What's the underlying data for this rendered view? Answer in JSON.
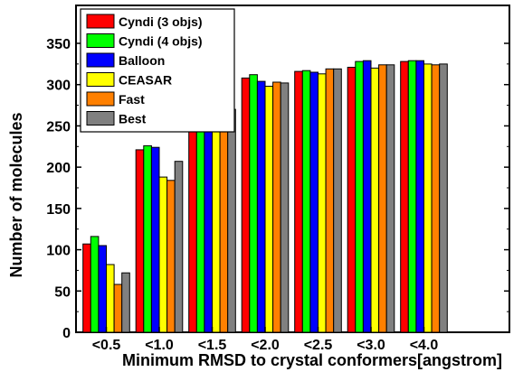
{
  "chart_data": {
    "type": "bar",
    "categories": [
      "<0.5",
      "<1.0",
      "<1.5",
      "<2.0",
      "<2.5",
      "<3.0",
      "<4.0"
    ],
    "series": [
      {
        "name": "Cyndi (3 objs)",
        "color": "#ff0000",
        "values": [
          107,
          221,
          284,
          308,
          316,
          321,
          328
        ]
      },
      {
        "name": "Cyndi (4 objs)",
        "color": "#00ff00",
        "values": [
          116,
          226,
          282,
          312,
          317,
          328,
          329
        ]
      },
      {
        "name": "Balloon",
        "color": "#0000ff",
        "values": [
          105,
          224,
          276,
          304,
          315,
          329,
          329
        ]
      },
      {
        "name": "CEASAR",
        "color": "#ffff00",
        "values": [
          82,
          188,
          266,
          298,
          313,
          320,
          325
        ]
      },
      {
        "name": "Fast",
        "color": "#ff8000",
        "values": [
          58,
          184,
          273,
          303,
          319,
          324,
          324
        ]
      },
      {
        "name": "Best",
        "color": "#808080",
        "values": [
          72,
          207,
          270,
          302,
          319,
          324,
          325
        ]
      }
    ],
    "title": "",
    "xlabel": "Minimum RMSD to crystal conformers[angstrom]",
    "ylabel": "Number of molecules",
    "ylim": [
      0,
      350
    ],
    "yticks": [
      0,
      50,
      100,
      150,
      200,
      250,
      300,
      350
    ],
    "legend_position": "top-left",
    "grid": false
  }
}
